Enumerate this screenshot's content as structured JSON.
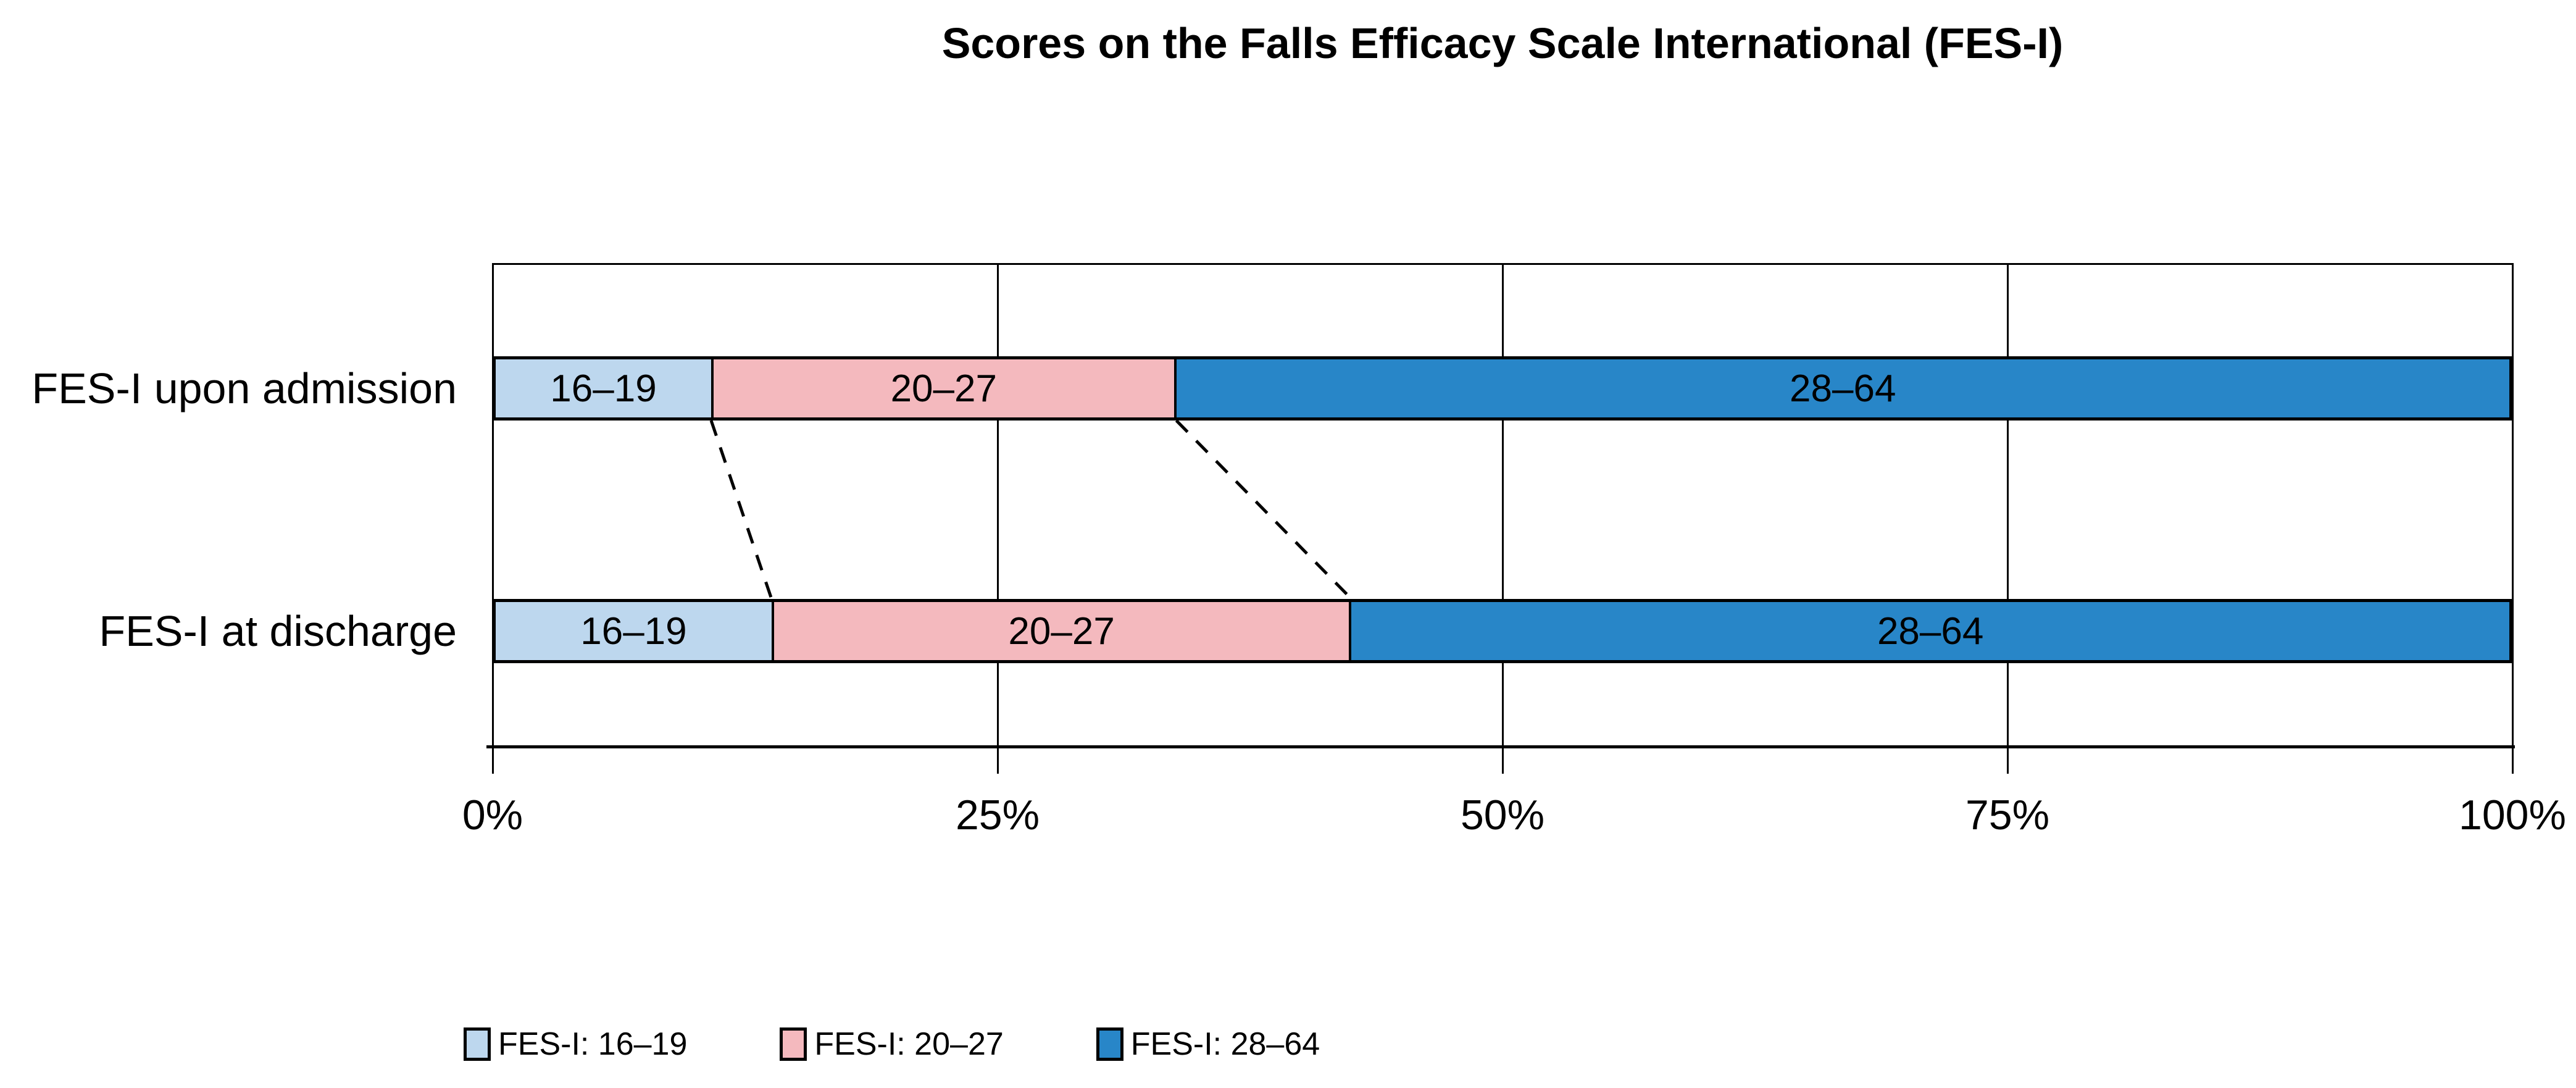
{
  "title": "Scores on the Falls Efficacy Scale International (FES-I)",
  "chart_data": {
    "type": "bar",
    "variant": "horizontal_stacked_100pct",
    "title": "Scores on the Falls Efficacy Scale International (FES-I)",
    "categories": [
      "FES-I upon admission",
      "FES-I at discharge"
    ],
    "series": [
      {
        "name": "FES-I: 16–19",
        "bar_label": "16–19",
        "color": "#BDD7EE",
        "values": [
          10.7,
          13.7
        ]
      },
      {
        "name": "FES-I: 20–27",
        "bar_label": "20–27",
        "color": "#F4B9BE",
        "values": [
          23.1,
          28.8
        ]
      },
      {
        "name": "FES-I: 28–64",
        "bar_label": "28–64",
        "color": "#2886C8",
        "values": [
          66.2,
          57.5
        ]
      }
    ],
    "x_tick_labels": [
      "0%",
      "25%",
      "50%",
      "75%",
      "100%"
    ],
    "xlim": [
      0,
      100
    ],
    "grid": "vertical",
    "legend_position": "bottom",
    "connectors": [
      {
        "from_category": 0,
        "to_category": 1,
        "after_series_index": 0,
        "style": "dashed"
      },
      {
        "from_category": 0,
        "to_category": 1,
        "after_series_index": 1,
        "style": "dashed"
      }
    ],
    "colors": {
      "axis": "#000000",
      "text": "#000000",
      "background": "#FFFFFF"
    }
  }
}
